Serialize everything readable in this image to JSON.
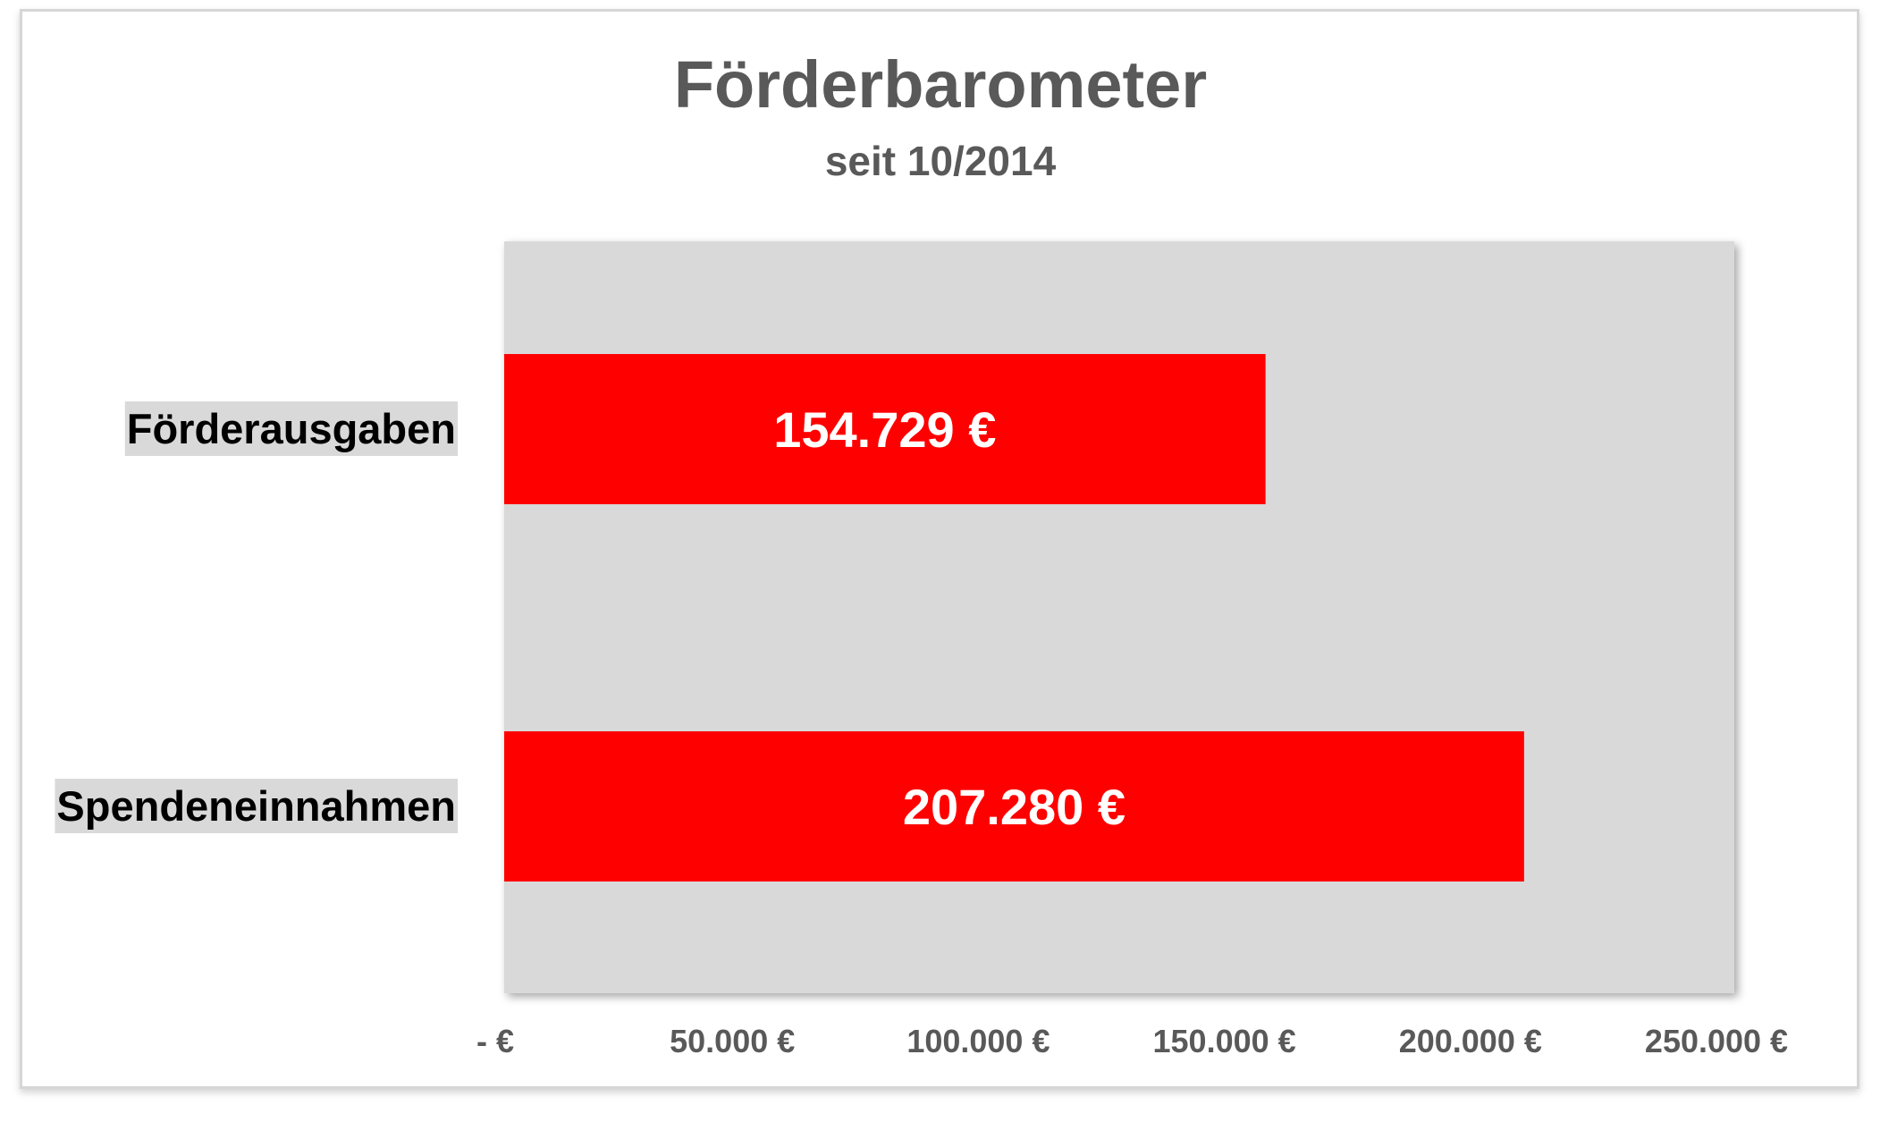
{
  "chart_data": {
    "type": "bar",
    "orientation": "horizontal",
    "title": "Förderbarometer",
    "subtitle": "seit 10/2014",
    "categories": [
      "Förderausgaben",
      "Spendeneinnahmen"
    ],
    "values": [
      154729,
      207280
    ],
    "data_labels": [
      "154.729 €",
      "207.280 €"
    ],
    "xlim": [
      0,
      250000
    ],
    "ticks": [
      0,
      50000,
      100000,
      150000,
      200000,
      250000
    ],
    "tick_labels": [
      "-   €",
      "50.000 €",
      "100.000 €",
      "150.000 €",
      "200.000 €",
      "250.000 €"
    ],
    "grid": false,
    "legend": "none",
    "bar_color": "#ff0000",
    "plot_background": "#d9d9d9"
  }
}
